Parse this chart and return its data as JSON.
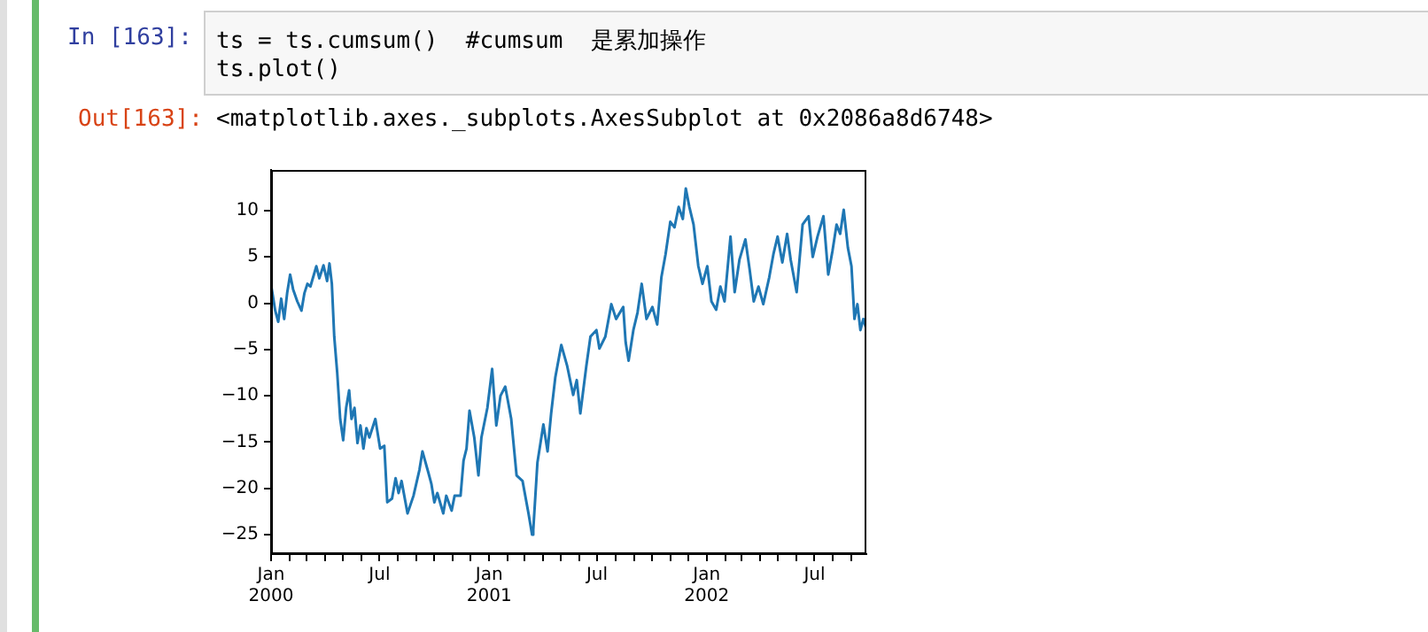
{
  "chart_data": {
    "type": "line",
    "annotations": [
      "In [163]:",
      "ts = ts.cumsum()  #cumsum  是累加操作",
      "ts.plot()",
      "Out[163]:",
      "<matplotlib.axes._subplots.AxesSubplot at 0x2086a8d6748>"
    ],
    "x": [
      "2000-01-01",
      "2000-01-08",
      "2000-01-13",
      "2000-01-18",
      "2000-01-23",
      "2000-01-28",
      "2000-02-02",
      "2000-02-07",
      "2000-02-14",
      "2000-02-21",
      "2000-02-26",
      "2000-03-02",
      "2000-03-07",
      "2000-03-17",
      "2000-03-22",
      "2000-03-29",
      "2000-04-04",
      "2000-04-08",
      "2000-04-12",
      "2000-04-16",
      "2000-04-21",
      "2000-04-26",
      "2000-05-01",
      "2000-05-06",
      "2000-05-11",
      "2000-05-15",
      "2000-05-20",
      "2000-05-25",
      "2000-05-30",
      "2000-06-04",
      "2000-06-09",
      "2000-06-14",
      "2000-06-24",
      "2000-07-02",
      "2000-07-09",
      "2000-07-14",
      "2000-07-22",
      "2000-07-28",
      "2000-08-02",
      "2000-08-07",
      "2000-08-17",
      "2000-08-27",
      "2000-09-06",
      "2000-09-11",
      "2000-09-21",
      "2000-09-26",
      "2000-10-01",
      "2000-10-06",
      "2000-10-16",
      "2000-10-21",
      "2000-10-30",
      "2000-11-04",
      "2000-11-14",
      "2000-11-19",
      "2000-11-24",
      "2000-11-29",
      "2000-12-07",
      "2000-12-14",
      "2000-12-19",
      "2000-12-29",
      "2001-01-06",
      "2001-01-13",
      "2001-01-20",
      "2001-01-28",
      "2001-02-07",
      "2001-02-16",
      "2001-02-26",
      "2001-03-08",
      "2001-03-14",
      "2001-03-16",
      "2001-03-23",
      "2001-04-02",
      "2001-04-09",
      "2001-04-15",
      "2001-04-22",
      "2001-05-02",
      "2001-05-12",
      "2001-05-22",
      "2001-05-28",
      "2001-06-03",
      "2001-06-13",
      "2001-06-20",
      "2001-06-30",
      "2001-07-05",
      "2001-07-15",
      "2001-07-25",
      "2001-08-02",
      "2001-08-14",
      "2001-08-18",
      "2001-08-23",
      "2001-08-31",
      "2001-09-07",
      "2001-09-14",
      "2001-09-22",
      "2001-10-02",
      "2001-10-10",
      "2001-10-17",
      "2001-10-24",
      "2001-11-01",
      "2001-11-08",
      "2001-11-15",
      "2001-11-22",
      "2001-11-27",
      "2001-12-03",
      "2001-12-10",
      "2001-12-18",
      "2001-12-25",
      "2002-01-02",
      "2002-01-09",
      "2002-01-17",
      "2002-01-24",
      "2002-01-31",
      "2002-02-10",
      "2002-02-17",
      "2002-02-25",
      "2002-03-07",
      "2002-03-14",
      "2002-03-21",
      "2002-03-29",
      "2002-04-06",
      "2002-04-16",
      "2002-04-23",
      "2002-04-30",
      "2002-05-08",
      "2002-05-16",
      "2002-05-22",
      "2002-06-01",
      "2002-06-11",
      "2002-06-21",
      "2002-06-28",
      "2002-07-06",
      "2002-07-16",
      "2002-07-24",
      "2002-07-31",
      "2002-08-07",
      "2002-08-13",
      "2002-08-19",
      "2002-08-26",
      "2002-09-01",
      "2002-09-06",
      "2002-09-11",
      "2002-09-16",
      "2002-09-21",
      "2002-09-26"
    ],
    "series": [
      {
        "color": "#1f77b4",
        "values": [
          2.0,
          -0.8,
          -2.0,
          0.5,
          -1.7,
          1.1,
          3.1,
          1.5,
          0.2,
          -0.8,
          1.1,
          2.1,
          1.8,
          4.0,
          2.7,
          4.1,
          2.4,
          4.3,
          2.1,
          -3.6,
          -7.5,
          -12.5,
          -14.8,
          -11.3,
          -9.4,
          -12.5,
          -11.3,
          -15.1,
          -13.2,
          -15.7,
          -13.5,
          -14.5,
          -12.5,
          -15.7,
          -15.4,
          -21.5,
          -21.1,
          -18.9,
          -20.5,
          -19.2,
          -22.7,
          -20.8,
          -18.0,
          -16.0,
          -18.3,
          -19.5,
          -21.5,
          -20.5,
          -22.7,
          -20.8,
          -22.4,
          -20.8,
          -20.8,
          -17.0,
          -15.7,
          -11.6,
          -14.5,
          -18.6,
          -14.5,
          -11.3,
          -7.1,
          -13.2,
          -10.0,
          -9.0,
          -12.5,
          -18.6,
          -19.2,
          -22.7,
          -25.0,
          -24.5,
          -17.2,
          -13.1,
          -16.0,
          -11.9,
          -8.0,
          -4.5,
          -6.8,
          -9.9,
          -8.3,
          -11.9,
          -6.8,
          -3.6,
          -2.9,
          -4.9,
          -3.6,
          -0.1,
          -1.7,
          -0.4,
          -4.2,
          -6.2,
          -2.9,
          -1.0,
          2.1,
          -1.7,
          -0.4,
          -2.3,
          2.8,
          5.3,
          8.8,
          8.2,
          10.4,
          9.1,
          12.4,
          10.4,
          8.5,
          4.0,
          2.1,
          4.0,
          0.2,
          -0.7,
          1.8,
          0.2,
          7.2,
          1.2,
          4.7,
          6.9,
          3.7,
          0.2,
          1.8,
          -0.1,
          2.8,
          5.3,
          7.2,
          4.4,
          7.5,
          4.7,
          1.2,
          8.5,
          9.4,
          5.0,
          7.2,
          9.4,
          3.1,
          5.6,
          8.5,
          7.5,
          10.1,
          6.0,
          4.0,
          -1.7,
          -0.1,
          -2.9,
          -1.7,
          -2.8
        ]
      }
    ],
    "xlim": [
      "2000-01-01",
      "2002-09-26"
    ],
    "xticks": [
      {
        "value": "2000-01-01",
        "label": "Jan\n2000"
      },
      {
        "value": "2000-02-01",
        "label": null
      },
      {
        "value": "2000-03-01",
        "label": null
      },
      {
        "value": "2000-04-01",
        "label": null
      },
      {
        "value": "2000-05-01",
        "label": null
      },
      {
        "value": "2000-06-01",
        "label": null
      },
      {
        "value": "2000-07-01",
        "label": "Jul"
      },
      {
        "value": "2000-08-01",
        "label": null
      },
      {
        "value": "2000-09-01",
        "label": null
      },
      {
        "value": "2000-10-01",
        "label": null
      },
      {
        "value": "2000-11-01",
        "label": null
      },
      {
        "value": "2000-12-01",
        "label": null
      },
      {
        "value": "2001-01-01",
        "label": "Jan\n2001"
      },
      {
        "value": "2001-02-01",
        "label": null
      },
      {
        "value": "2001-03-01",
        "label": null
      },
      {
        "value": "2001-04-01",
        "label": null
      },
      {
        "value": "2001-05-01",
        "label": null
      },
      {
        "value": "2001-06-01",
        "label": null
      },
      {
        "value": "2001-07-01",
        "label": "Jul"
      },
      {
        "value": "2001-08-01",
        "label": null
      },
      {
        "value": "2001-09-01",
        "label": null
      },
      {
        "value": "2001-10-01",
        "label": null
      },
      {
        "value": "2001-11-01",
        "label": null
      },
      {
        "value": "2001-12-01",
        "label": null
      },
      {
        "value": "2002-01-01",
        "label": "Jan\n2002"
      },
      {
        "value": "2002-02-01",
        "label": null
      },
      {
        "value": "2002-03-01",
        "label": null
      },
      {
        "value": "2002-04-01",
        "label": null
      },
      {
        "value": "2002-05-01",
        "label": null
      },
      {
        "value": "2002-06-01",
        "label": null
      },
      {
        "value": "2002-07-01",
        "label": "Jul"
      },
      {
        "value": "2002-08-01",
        "label": null
      },
      {
        "value": "2002-09-01",
        "label": null
      }
    ],
    "ylim": [
      -27.1,
      14.4
    ],
    "yticks": [
      -25,
      -20,
      -15,
      -10,
      -5,
      0,
      5,
      10
    ],
    "grid": false,
    "legend": false
  }
}
